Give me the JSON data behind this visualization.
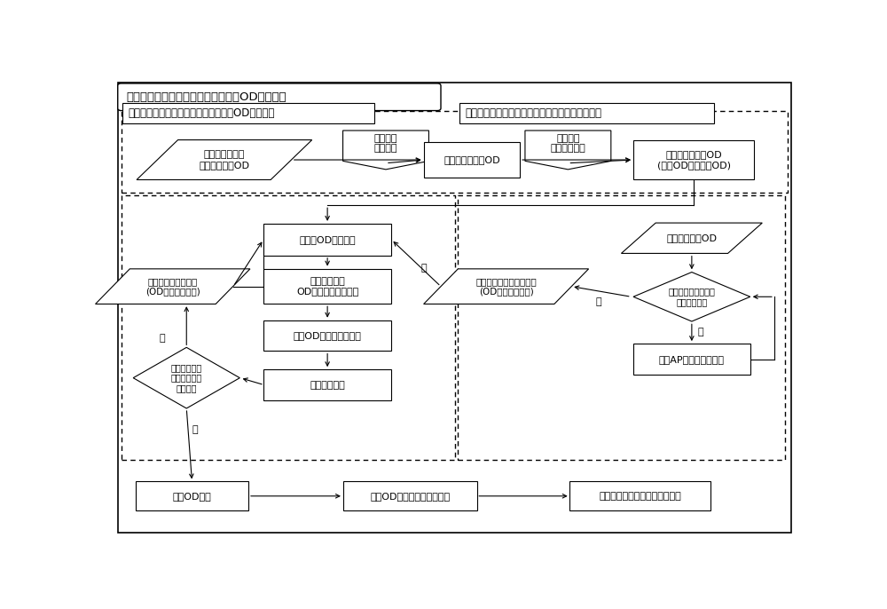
{
  "title": "基于信令数据和流量调查数据的先验OD生成方法",
  "bg_color": "#ffffff",
  "section1_label": "基于断面流量和出行分布特征的极大熵OD估计模型",
  "section2_label": "基于浮动车数据的交通小区出行分布比例估计模型",
  "font_size_small": 8.0,
  "font_size_title": 9.5,
  "font_size_section": 8.5
}
